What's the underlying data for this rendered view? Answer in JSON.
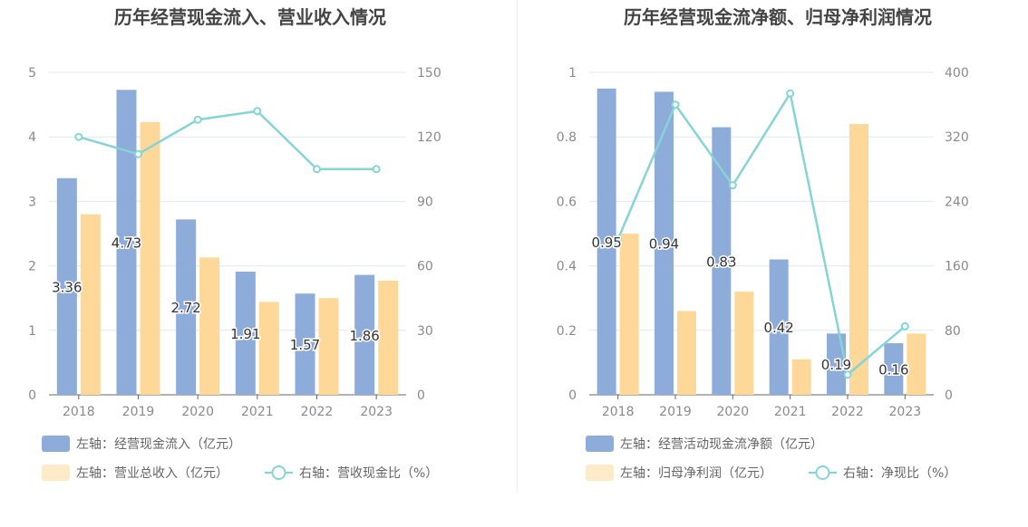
{
  "colors": {
    "bar1": "#8eacd9",
    "bar2": "#fed899",
    "bar2_legend": "#fdebc9",
    "line": "#85d4d6",
    "grid": "#e3e7f1",
    "axis": "#666",
    "tick": "#8a8a8a",
    "title": "#444"
  },
  "chart_data": [
    {
      "type": "bar+line",
      "title": "历年经营现金流入、营业收入情况",
      "categories": [
        "2018",
        "2019",
        "2020",
        "2021",
        "2022",
        "2023"
      ],
      "left_axis": {
        "ylim": [
          0,
          5
        ],
        "ticks": [
          "0",
          "1",
          "2",
          "3",
          "4",
          "5"
        ]
      },
      "right_axis": {
        "ylim": [
          0,
          150
        ],
        "ticks": [
          "0",
          "30",
          "60",
          "90",
          "120",
          "150"
        ]
      },
      "grid": true,
      "legend_position": "bottom-left",
      "series": [
        {
          "name": "左轴：经营现金流入（亿元）",
          "type": "bar",
          "axis": "left",
          "values": [
            3.36,
            4.73,
            2.72,
            1.91,
            1.57,
            1.86
          ],
          "labels": [
            "3.36",
            "4.73",
            "2.72",
            "1.91",
            "1.57",
            "1.86"
          ]
        },
        {
          "name": "左轴：营业总收入（亿元）",
          "type": "bar",
          "axis": "left",
          "values": [
            2.8,
            4.23,
            2.13,
            1.44,
            1.5,
            1.77
          ]
        },
        {
          "name": "右轴：营收现金比（%）",
          "type": "line",
          "axis": "right",
          "values": [
            120,
            112,
            128,
            132,
            105,
            105
          ]
        }
      ]
    },
    {
      "type": "bar+line",
      "title": "历年经营现金流净额、归母净利润情况",
      "categories": [
        "2018",
        "2019",
        "2020",
        "2021",
        "2022",
        "2023"
      ],
      "left_axis": {
        "ylim": [
          0,
          1
        ],
        "ticks": [
          "0",
          "0.2",
          "0.4",
          "0.6",
          "0.8",
          "1"
        ]
      },
      "right_axis": {
        "ylim": [
          0,
          400
        ],
        "ticks": [
          "0",
          "80",
          "160",
          "240",
          "320",
          "400"
        ]
      },
      "grid": true,
      "legend_position": "bottom-left",
      "series": [
        {
          "name": "左轴：经营活动现金流净额（亿元）",
          "type": "bar",
          "axis": "left",
          "values": [
            0.95,
            0.94,
            0.83,
            0.42,
            0.19,
            0.16
          ],
          "labels": [
            "0.95",
            "0.94",
            "0.83",
            "0.42",
            "0.19",
            "0.16"
          ]
        },
        {
          "name": "左轴：归母净利润（亿元）",
          "type": "bar",
          "axis": "left",
          "values": [
            0.5,
            0.26,
            0.32,
            0.11,
            0.84,
            0.19
          ]
        },
        {
          "name": "右轴：净现比（%）",
          "type": "line",
          "axis": "right",
          "values": [
            193,
            360,
            260,
            374,
            25,
            85
          ]
        }
      ]
    }
  ]
}
